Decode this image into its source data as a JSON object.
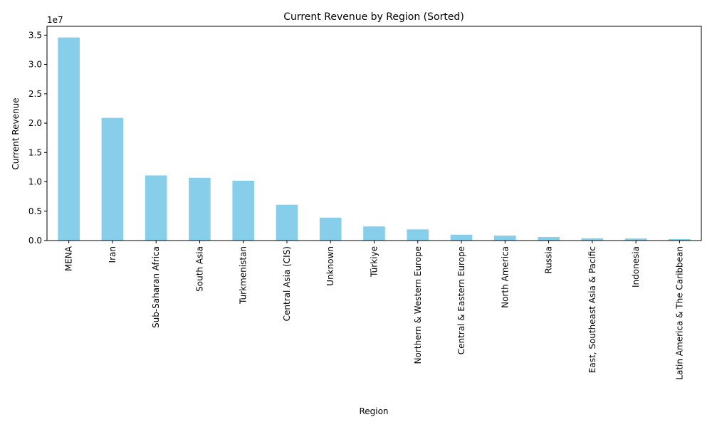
{
  "chart_data": {
    "type": "bar",
    "title": "Current Revenue by Region (Sorted)",
    "xlabel": "Region",
    "ylabel": "Current Revenue",
    "y_multiplier": "1e7",
    "ylim": [
      0,
      3.65
    ],
    "yticks": [
      0.0,
      0.5,
      1.0,
      1.5,
      2.0,
      2.5,
      3.0,
      3.5
    ],
    "ytick_labels": [
      "0.0",
      "0.5",
      "1.0",
      "1.5",
      "2.0",
      "2.5",
      "3.0",
      "3.5"
    ],
    "bar_color": "#87CEEB",
    "categories": [
      "MENA",
      "Iran",
      "Sub-Saharan Africa",
      "South Asia",
      "Turkmenistan",
      "Central Asia (CIS)",
      "Unknown",
      "Türkiye",
      "Northern & Western Europe",
      "Central & Eastern Europe",
      "North America",
      "Russia",
      "East, Southeast Asia & Pacific",
      "Indonesia",
      "Latin America & The Caribbean"
    ],
    "values": [
      34600000,
      20900000,
      11100000,
      10700000,
      10200000,
      6100000,
      3900000,
      2400000,
      1900000,
      1000000,
      850000,
      600000,
      380000,
      350000,
      250000
    ],
    "grid": false,
    "legend": false
  }
}
